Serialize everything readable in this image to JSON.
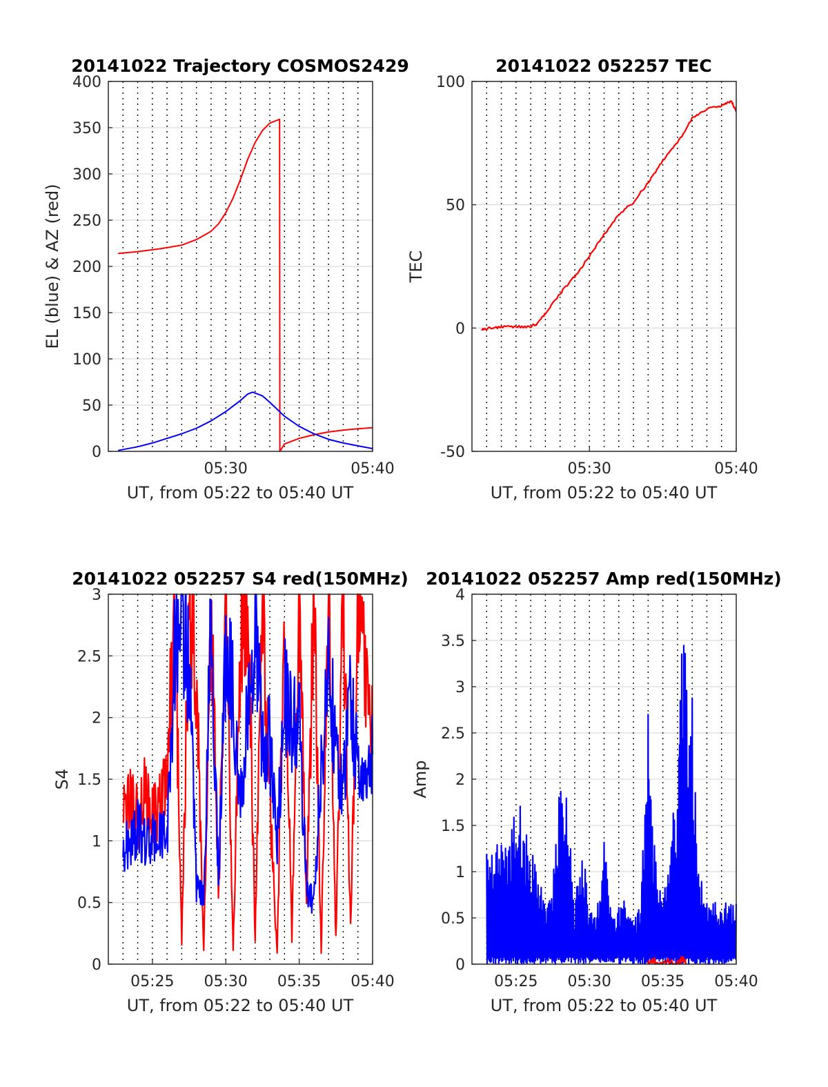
{
  "chart_data": [
    {
      "type": "line",
      "title": "20141022 Trajectory COSMOS2429",
      "xlabel": "UT, from 05:22 to 05:40 UT",
      "ylabel": "EL (blue) & AZ (red)",
      "x_ticks": [
        "05:30",
        "05:40"
      ],
      "y_ticks": [
        "0",
        "50",
        "100",
        "150",
        "200",
        "250",
        "300",
        "350",
        "400"
      ],
      "xlim": [
        "05:22",
        "05:40"
      ],
      "ylim": [
        0,
        400
      ],
      "grid": true,
      "series": [
        {
          "color": "#ff0000",
          "x": [
            "05:22:40",
            "05:24:00",
            "05:25:30",
            "05:27:00",
            "05:28:00",
            "05:29:00",
            "05:29:30",
            "05:30:00",
            "05:30:30",
            "05:31:00",
            "05:31:30",
            "05:32:00",
            "05:32:30",
            "05:33:00",
            "05:33:40",
            "05:33:41",
            "05:34:00",
            "05:35:00",
            "05:36:00",
            "05:37:00",
            "05:38:00",
            "05:39:00",
            "05:40:00"
          ],
          "y": [
            214,
            216,
            219,
            223,
            229,
            238,
            246,
            258,
            274,
            294,
            316,
            334,
            347,
            355,
            359,
            0,
            8,
            14,
            18,
            21,
            23,
            24.5,
            25.5
          ]
        },
        {
          "color": "#0000ff",
          "x": [
            "05:22:40",
            "05:24:00",
            "05:25:00",
            "05:26:00",
            "05:27:00",
            "05:28:00",
            "05:29:00",
            "05:30:00",
            "05:31:00",
            "05:31:30",
            "05:31:50",
            "05:32:30",
            "05:33:00",
            "05:34:00",
            "05:35:00",
            "05:36:00",
            "05:37:00",
            "05:38:00",
            "05:39:00",
            "05:40:00"
          ],
          "y": [
            1,
            5,
            9,
            14,
            19,
            25,
            33,
            43,
            55,
            62,
            64,
            60,
            53,
            38,
            27,
            19,
            13,
            9,
            6,
            3
          ]
        }
      ]
    },
    {
      "type": "line",
      "title": "20141022 052257 TEC",
      "xlabel": "UT, from 05:22 to 05:40 UT",
      "ylabel": "TEC",
      "x_ticks": [
        "05:30",
        "05:40"
      ],
      "y_ticks": [
        "-50",
        "0",
        "50",
        "100"
      ],
      "xlim": [
        "05:22",
        "05:40"
      ],
      "ylim": [
        -50,
        100
      ],
      "grid": true,
      "series": [
        {
          "color": "#ff0000",
          "x": [
            "05:22:40",
            "05:23:20",
            "05:24:00",
            "05:25:00",
            "05:26:00",
            "05:26:30",
            "05:27:00",
            "05:28:00",
            "05:29:00",
            "05:30:00",
            "05:31:00",
            "05:32:00",
            "05:33:00",
            "05:34:00",
            "05:35:00",
            "05:36:00",
            "05:37:00",
            "05:38:00",
            "05:39:00",
            "05:39:40",
            "05:40:00"
          ],
          "y": [
            -0.5,
            0,
            0.5,
            0.5,
            0.5,
            2,
            6,
            14,
            21,
            29,
            38,
            46,
            51,
            59,
            68,
            75,
            85,
            89,
            90,
            92,
            88
          ]
        }
      ]
    },
    {
      "type": "line",
      "title": "20141022 052257 S4 red(150MHz)",
      "xlabel": "UT, from 05:22 to 05:40 UT",
      "ylabel": "S4",
      "x_ticks": [
        "05:25",
        "05:30",
        "05:35",
        "05:40"
      ],
      "y_ticks": [
        "0",
        "0.5",
        "1",
        "1.5",
        "2",
        "2.5",
        "3"
      ],
      "xlim": [
        "05:22",
        "05:40"
      ],
      "ylim": [
        0,
        3
      ],
      "grid": true,
      "series": [
        {
          "color": "#ff0000",
          "x": [
            "05:23",
            "05:23:30",
            "05:24",
            "05:24:30",
            "05:25",
            "05:25:30",
            "05:26",
            "05:26:30",
            "05:27",
            "05:27:30",
            "05:28",
            "05:28:30",
            "05:29",
            "05:29:30",
            "05:30",
            "05:30:30",
            "05:31",
            "05:31:30",
            "05:32",
            "05:32:30",
            "05:33",
            "05:33:30",
            "05:34",
            "05:34:30",
            "05:35",
            "05:35:30",
            "05:36",
            "05:36:30",
            "05:37",
            "05:37:30",
            "05:38",
            "05:38:30",
            "05:39",
            "05:39:30",
            "05:40"
          ],
          "y": [
            1.2,
            1.3,
            1.2,
            1.4,
            1.2,
            1.3,
            1.5,
            3.0,
            0.2,
            3.0,
            2.4,
            0.1,
            3.0,
            0.5,
            3.0,
            0.1,
            2.6,
            3.0,
            0.2,
            3.0,
            1.3,
            0.1,
            3.0,
            0.2,
            3.0,
            0.5,
            3.0,
            0.1,
            3.0,
            0.2,
            3.0,
            0.3,
            3.0,
            2.5,
            1.8
          ]
        },
        {
          "color": "#0000ff",
          "x": [
            "05:23",
            "05:23:30",
            "05:24",
            "05:24:30",
            "05:25",
            "05:25:30",
            "05:26",
            "05:26:30",
            "05:27",
            "05:27:30",
            "05:28",
            "05:28:30",
            "05:29",
            "05:29:30",
            "05:30",
            "05:30:30",
            "05:31",
            "05:31:30",
            "05:32",
            "05:32:30",
            "05:33",
            "05:33:30",
            "05:34",
            "05:34:30",
            "05:35",
            "05:35:30",
            "05:36",
            "05:36:30",
            "05:37",
            "05:37:30",
            "05:38",
            "05:38:30",
            "05:39",
            "05:39:30",
            "05:40"
          ],
          "y": [
            0.9,
            1.0,
            1.1,
            1.0,
            1.0,
            1.05,
            1.0,
            2.5,
            2.9,
            2.4,
            0.6,
            0.55,
            2.8,
            0.7,
            2.6,
            2.2,
            1.3,
            2.0,
            2.9,
            1.7,
            1.8,
            1.0,
            2.2,
            1.9,
            2.0,
            0.6,
            0.5,
            1.6,
            2.4,
            1.8,
            1.4,
            2.2,
            1.6,
            1.4,
            1.7
          ]
        }
      ]
    },
    {
      "type": "line",
      "title": "20141022 052257 Amp red(150MHz)",
      "xlabel": "UT, from 05:22 to 05:40 UT",
      "ylabel": "Amp",
      "x_ticks": [
        "05:25",
        "05:30",
        "05:35",
        "05:40"
      ],
      "y_ticks": [
        "0",
        "0.5",
        "1",
        "1.5",
        "2",
        "2.5",
        "3",
        "3.5",
        "4"
      ],
      "xlim": [
        "05:22",
        "05:40"
      ],
      "ylim": [
        0,
        4
      ],
      "grid": true,
      "series": [
        {
          "color": "#0000ff",
          "x": [
            "05:23",
            "05:23:30",
            "05:24",
            "05:24:30",
            "05:25",
            "05:25:30",
            "05:26",
            "05:26:30",
            "05:27",
            "05:27:30",
            "05:28",
            "05:28:20",
            "05:29",
            "05:29:30",
            "05:30",
            "05:30:30",
            "05:31",
            "05:31:30",
            "05:32",
            "05:32:30",
            "05:33",
            "05:33:30",
            "05:34",
            "05:34:20",
            "05:35",
            "05:35:30",
            "05:36",
            "05:36:20",
            "05:37",
            "05:37:30",
            "05:38",
            "05:38:30",
            "05:39",
            "05:39:30",
            "05:40"
          ],
          "y": [
            1.25,
            1.3,
            1.3,
            1.2,
            2.0,
            1.5,
            1.2,
            1.0,
            0.7,
            0.8,
            2.05,
            2.1,
            0.6,
            1.3,
            0.6,
            0.5,
            1.4,
            0.5,
            0.6,
            0.7,
            0.5,
            0.6,
            2.6,
            1.3,
            0.8,
            1.3,
            2.0,
            3.45,
            2.8,
            1.0,
            0.7,
            0.8,
            0.6,
            0.7,
            0.65
          ]
        },
        {
          "color": "#ff0000",
          "x": [
            "05:34:00",
            "05:34:15",
            "05:34:30",
            "05:36:10",
            "05:36:20",
            "05:36:35"
          ],
          "y": [
            0,
            0.05,
            0,
            0,
            0.08,
            0
          ]
        }
      ]
    }
  ]
}
